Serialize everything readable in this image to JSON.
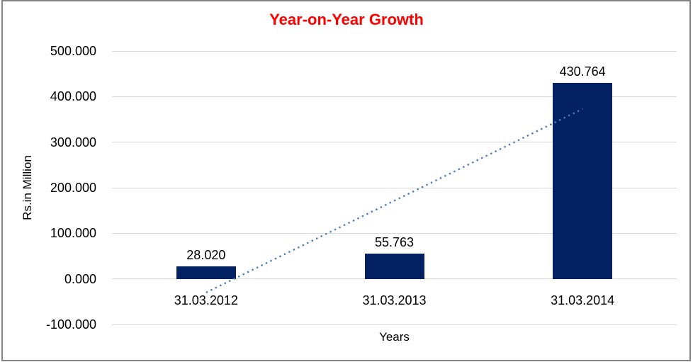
{
  "chart_data": {
    "type": "bar",
    "title": "Year-on-Year Growth",
    "title_color": "#ff0000",
    "xlabel": "Years",
    "ylabel": "Rs.in Million",
    "categories": [
      "31.03.2012",
      "31.03.2013",
      "31.03.2014"
    ],
    "values": [
      28.02,
      55.763,
      430.764
    ],
    "value_labels": [
      "28.020",
      "55.763",
      "430.764"
    ],
    "ylim": [
      -100,
      500
    ],
    "ytick_step": 100,
    "ytick_labels": [
      "500.000",
      "400.000",
      "300.000",
      "200.000",
      "100.000",
      "0.000",
      "-100.000"
    ],
    "grid": true,
    "legend": "none",
    "bar_color": "#032163",
    "gridline_color": "#d9d9d9",
    "axis_text_color": "#000000",
    "trendline": {
      "type": "linear",
      "style": "dotted",
      "color": "#4a7ebb",
      "start_value": -29.9,
      "end_value": 372.9
    }
  }
}
